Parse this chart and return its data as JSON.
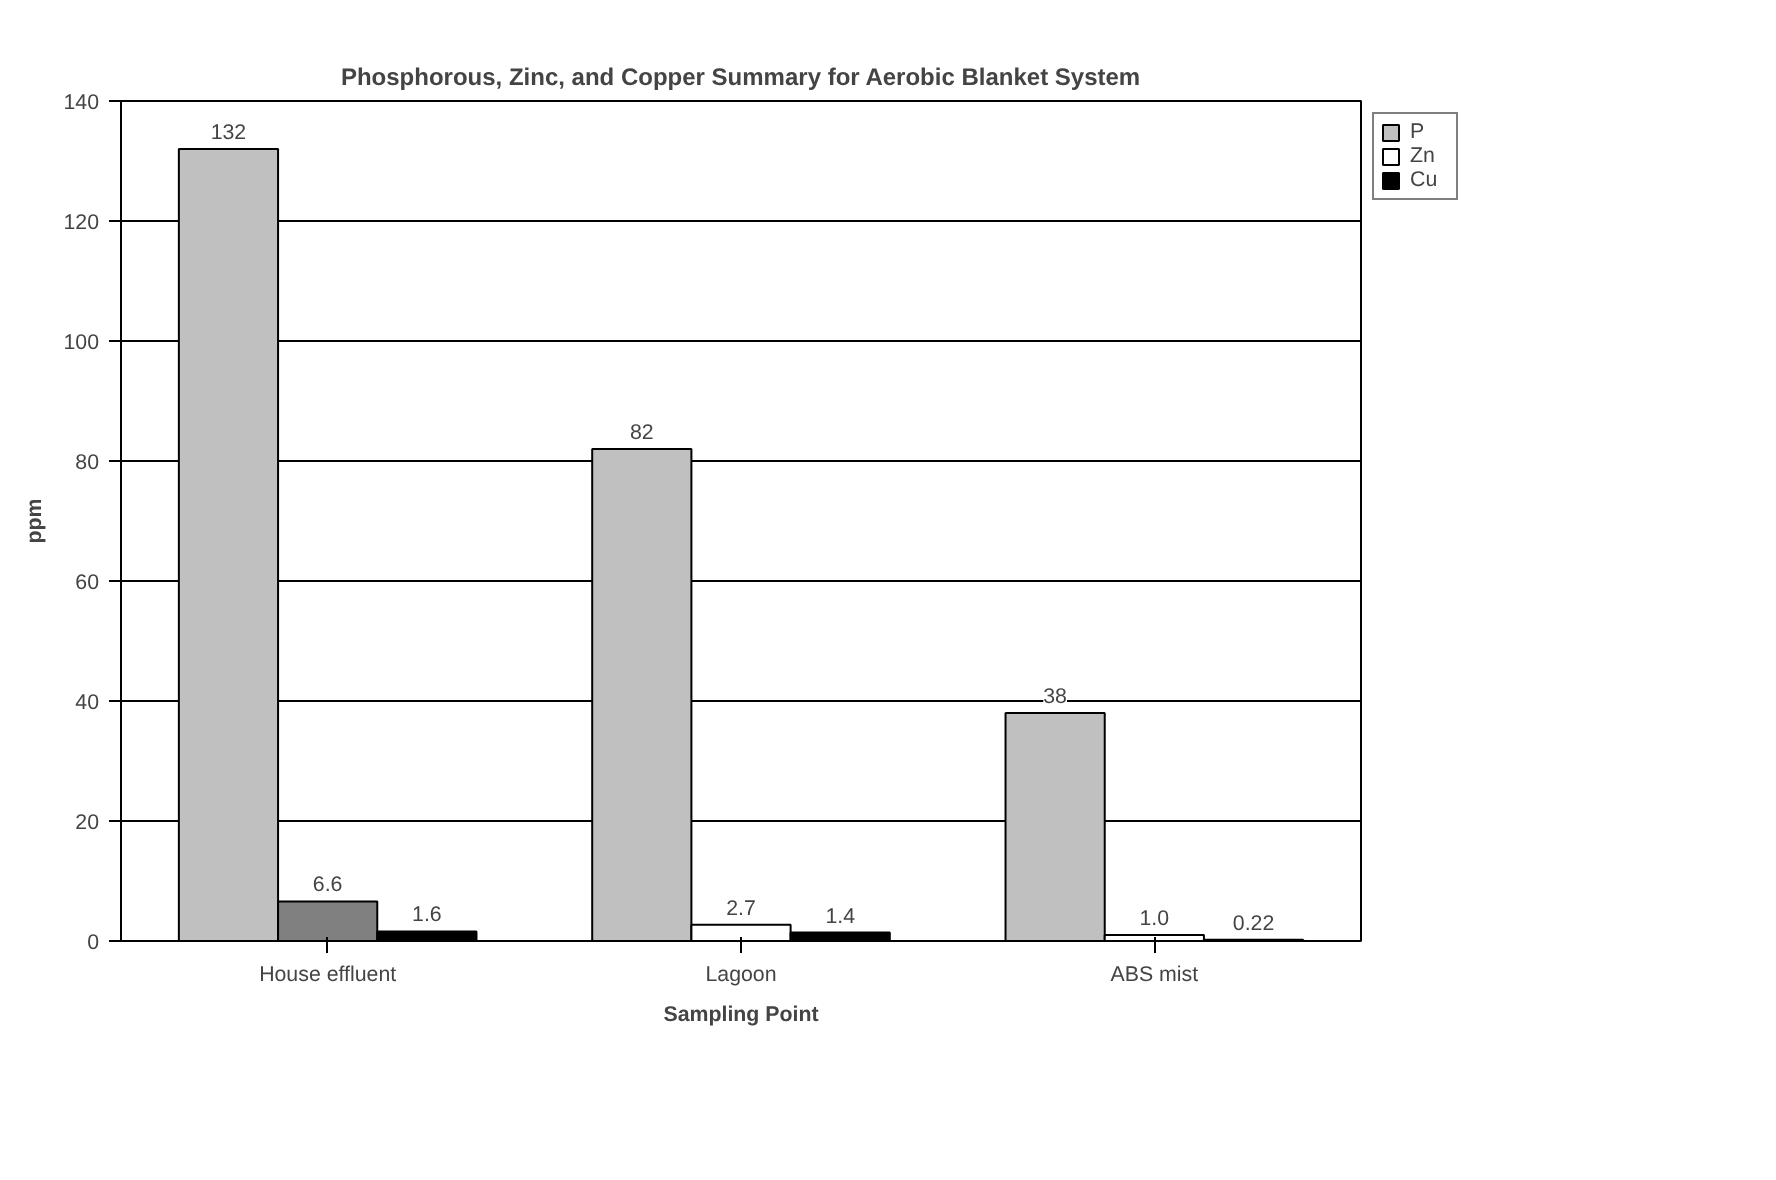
{
  "chart_data": {
    "type": "bar",
    "title": "Phosphorous, Zinc, and Copper Summary for Aerobic Blanket System",
    "xlabel": "Sampling Point",
    "ylabel": "ppm",
    "categories": [
      "House effluent",
      "Lagoon",
      "ABS mist"
    ],
    "series": [
      {
        "name": "P",
        "color": "#c0c0c0",
        "values": [
          132,
          82,
          38
        ],
        "value_labels": [
          "132",
          "82",
          "38"
        ]
      },
      {
        "name": "Zn",
        "color": "#ffffff",
        "colors": [
          "#808080",
          "#ffffff",
          "#ffffff"
        ],
        "values": [
          6.6,
          2.7,
          1.0
        ],
        "value_labels": [
          "6.6",
          "2.7",
          "1.0"
        ]
      },
      {
        "name": "Cu",
        "color": "#000000",
        "values": [
          1.6,
          1.4,
          0.22
        ],
        "value_labels": [
          "1.6",
          "1.4",
          "0.22"
        ]
      }
    ],
    "ylim": [
      0,
      140
    ],
    "yticks": [
      0,
      20,
      40,
      60,
      80,
      100,
      120,
      140
    ],
    "grid": "y",
    "legend": "top right"
  }
}
